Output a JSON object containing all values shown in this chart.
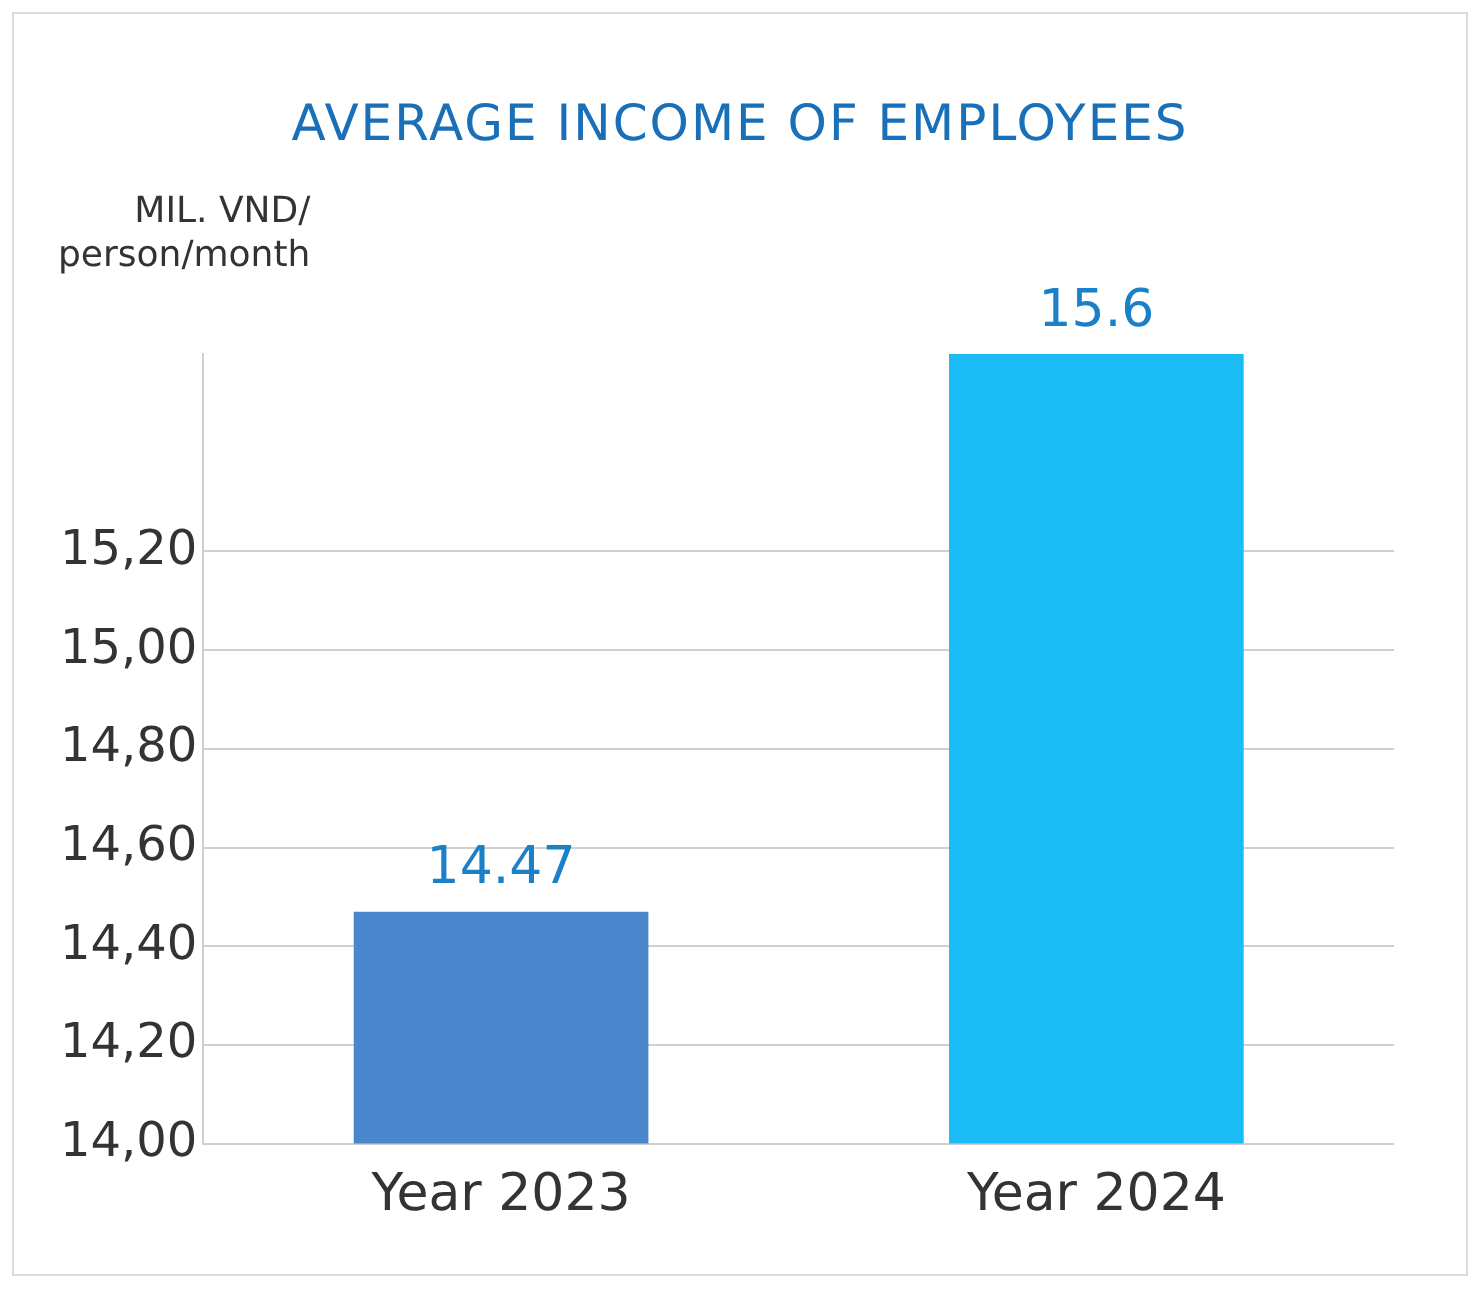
{
  "chart_data": {
    "type": "bar",
    "title": "AVERAGE INCOME OF EMPLOYEES",
    "ylabel": "MIL. VND/\nperson/month",
    "categories": [
      "Year 2023",
      "Year 2024"
    ],
    "values": [
      14.47,
      15.6
    ],
    "colors": [
      "#4a86cc",
      "#1bbcf5"
    ],
    "ylim": [
      14,
      15.6
    ],
    "yticks": [
      {
        "value": 14,
        "label": "14,00"
      },
      {
        "value": 14.2,
        "label": "14,20"
      },
      {
        "value": 14.4,
        "label": "14,40"
      },
      {
        "value": 14.6,
        "label": "14,60"
      },
      {
        "value": 14.8,
        "label": "14,80"
      },
      {
        "value": 15,
        "label": "15,00"
      },
      {
        "value": 15.2,
        "label": "15,20"
      }
    ],
    "grid": "y",
    "data_labels": true,
    "legend": false
  }
}
